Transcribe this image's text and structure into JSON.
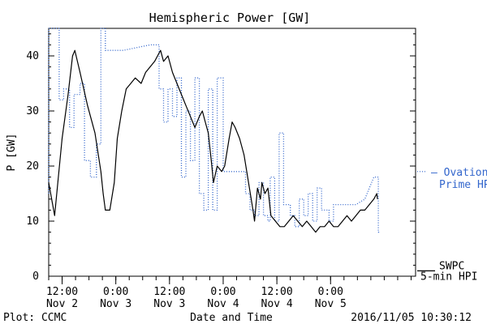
{
  "chart_data": {
    "type": "line",
    "title": "Hemispheric Power [GW]",
    "ylabel": "P [GW]",
    "xlabel": "Date and Time",
    "ylim": [
      0,
      45
    ],
    "yticks": [
      0,
      10,
      20,
      30,
      40
    ],
    "grid": false,
    "x_unit": "UTC",
    "xlim": [
      "2016-11-02T09:00",
      "2016-11-05T19:00"
    ],
    "xticks": [
      {
        "t": "2016-11-02T12:00",
        "line1": "12:00",
        "line2": "Nov 2"
      },
      {
        "t": "2016-11-03T00:00",
        "line1": "0:00",
        "line2": "Nov 3"
      },
      {
        "t": "2016-11-03T12:00",
        "line1": "12:00",
        "line2": "Nov 3"
      },
      {
        "t": "2016-11-04T00:00",
        "line1": "0:00",
        "line2": "Nov 4"
      },
      {
        "t": "2016-11-04T12:00",
        "line1": "12:00",
        "line2": "Nov 4"
      },
      {
        "t": "2016-11-05T00:00",
        "line1": "0:00",
        "line2": "Nov 5"
      }
    ],
    "minor_ticks_per_major": 4,
    "series": [
      {
        "name": "SWPC 5-min HPI",
        "color": "#000000",
        "style": "solid",
        "points": [
          [
            "2016-11-02T09:00",
            17
          ],
          [
            "2016-11-02T10:20",
            11
          ],
          [
            "2016-11-02T12:00",
            25
          ],
          [
            "2016-11-02T13:20",
            33
          ],
          [
            "2016-11-02T14:20",
            40
          ],
          [
            "2016-11-02T14:50",
            41
          ],
          [
            "2016-11-02T16:00",
            37
          ],
          [
            "2016-11-02T17:40",
            31
          ],
          [
            "2016-11-02T19:20",
            26
          ],
          [
            "2016-11-02T20:40",
            19
          ],
          [
            "2016-11-02T21:10",
            15
          ],
          [
            "2016-11-02T21:40",
            12
          ],
          [
            "2016-11-02T22:40",
            12
          ],
          [
            "2016-11-02T23:40",
            17
          ],
          [
            "2016-11-03T00:20",
            25
          ],
          [
            "2016-11-03T01:20",
            30
          ],
          [
            "2016-11-03T02:20",
            34
          ],
          [
            "2016-11-03T03:20",
            35
          ],
          [
            "2016-11-03T04:20",
            36
          ],
          [
            "2016-11-03T05:40",
            35
          ],
          [
            "2016-11-03T06:40",
            37
          ],
          [
            "2016-11-03T07:40",
            38
          ],
          [
            "2016-11-03T08:40",
            39
          ],
          [
            "2016-11-03T09:20",
            40
          ],
          [
            "2016-11-03T10:00",
            41
          ],
          [
            "2016-11-03T10:40",
            39
          ],
          [
            "2016-11-03T11:40",
            40
          ],
          [
            "2016-11-03T12:40",
            37
          ],
          [
            "2016-11-03T13:40",
            35
          ],
          [
            "2016-11-03T14:40",
            33
          ],
          [
            "2016-11-03T15:40",
            31
          ],
          [
            "2016-11-03T16:40",
            29
          ],
          [
            "2016-11-03T17:40",
            27
          ],
          [
            "2016-11-03T18:40",
            29
          ],
          [
            "2016-11-03T19:20",
            30
          ],
          [
            "2016-11-03T20:00",
            28
          ],
          [
            "2016-11-03T20:40",
            26
          ],
          [
            "2016-11-03T21:20",
            21
          ],
          [
            "2016-11-03T21:50",
            17
          ],
          [
            "2016-11-03T22:40",
            20
          ],
          [
            "2016-11-03T23:40",
            19
          ],
          [
            "2016-11-04T00:20",
            20
          ],
          [
            "2016-11-04T01:20",
            25
          ],
          [
            "2016-11-04T02:00",
            28
          ],
          [
            "2016-11-04T02:40",
            27
          ],
          [
            "2016-11-04T03:40",
            25
          ],
          [
            "2016-11-04T04:40",
            22
          ],
          [
            "2016-11-04T05:40",
            17
          ],
          [
            "2016-11-04T06:40",
            12
          ],
          [
            "2016-11-04T07:00",
            10
          ],
          [
            "2016-11-04T07:40",
            16
          ],
          [
            "2016-11-04T08:20",
            14
          ],
          [
            "2016-11-04T08:40",
            17
          ],
          [
            "2016-11-04T09:20",
            15
          ],
          [
            "2016-11-04T10:00",
            16
          ],
          [
            "2016-11-04T10:40",
            11
          ],
          [
            "2016-11-04T11:40",
            10
          ],
          [
            "2016-11-04T12:40",
            9
          ],
          [
            "2016-11-04T13:40",
            9
          ],
          [
            "2016-11-04T14:40",
            10
          ],
          [
            "2016-11-04T15:40",
            11
          ],
          [
            "2016-11-04T16:40",
            10
          ],
          [
            "2016-11-04T17:40",
            9
          ],
          [
            "2016-11-04T18:40",
            10
          ],
          [
            "2016-11-04T19:40",
            9
          ],
          [
            "2016-11-04T20:40",
            8
          ],
          [
            "2016-11-04T21:40",
            9
          ],
          [
            "2016-11-04T22:40",
            9
          ],
          [
            "2016-11-04T23:40",
            10
          ],
          [
            "2016-11-05T00:40",
            9
          ],
          [
            "2016-11-05T01:40",
            9
          ],
          [
            "2016-11-05T02:40",
            10
          ],
          [
            "2016-11-05T03:40",
            11
          ],
          [
            "2016-11-05T04:40",
            10
          ],
          [
            "2016-11-05T05:40",
            11
          ],
          [
            "2016-11-05T06:40",
            12
          ],
          [
            "2016-11-05T07:40",
            12
          ],
          [
            "2016-11-05T08:40",
            13
          ],
          [
            "2016-11-05T09:40",
            14
          ],
          [
            "2016-11-05T10:20",
            15
          ],
          [
            "2016-11-05T10:30",
            14
          ]
        ]
      },
      {
        "name": "Ovation Prime HPI",
        "color": "#3366cc",
        "style": "dotted",
        "points": [
          [
            "2016-11-02T09:00",
            15
          ],
          [
            "2016-11-02T09:00",
            45
          ],
          [
            "2016-11-02T11:20",
            45
          ],
          [
            "2016-11-02T11:20",
            32
          ],
          [
            "2016-11-02T12:20",
            32
          ],
          [
            "2016-11-02T12:20",
            34
          ],
          [
            "2016-11-02T13:40",
            34
          ],
          [
            "2016-11-02T13:40",
            27
          ],
          [
            "2016-11-02T14:40",
            27
          ],
          [
            "2016-11-02T14:40",
            33
          ],
          [
            "2016-11-02T16:00",
            33
          ],
          [
            "2016-11-02T16:00",
            35
          ],
          [
            "2016-11-02T17:00",
            35
          ],
          [
            "2016-11-02T17:00",
            21
          ],
          [
            "2016-11-02T18:20",
            21
          ],
          [
            "2016-11-02T18:20",
            18
          ],
          [
            "2016-11-02T19:40",
            18
          ],
          [
            "2016-11-02T19:40",
            24
          ],
          [
            "2016-11-02T20:40",
            24
          ],
          [
            "2016-11-02T20:40",
            45
          ],
          [
            "2016-11-02T21:40",
            45
          ],
          [
            "2016-11-02T21:40",
            41
          ],
          [
            "2016-11-03T00:40",
            41
          ],
          [
            "2016-11-03T01:40",
            41
          ],
          [
            "2016-11-03T04:40",
            41.5
          ],
          [
            "2016-11-03T07:40",
            42
          ],
          [
            "2016-11-03T09:40",
            42
          ],
          [
            "2016-11-03T09:40",
            34
          ],
          [
            "2016-11-03T10:40",
            34
          ],
          [
            "2016-11-03T10:40",
            28
          ],
          [
            "2016-11-03T11:40",
            28
          ],
          [
            "2016-11-03T11:40",
            34
          ],
          [
            "2016-11-03T12:40",
            34
          ],
          [
            "2016-11-03T12:40",
            29
          ],
          [
            "2016-11-03T13:40",
            29
          ],
          [
            "2016-11-03T13:40",
            36
          ],
          [
            "2016-11-03T14:40",
            36
          ],
          [
            "2016-11-03T14:40",
            18
          ],
          [
            "2016-11-03T15:40",
            18
          ],
          [
            "2016-11-03T15:40",
            30
          ],
          [
            "2016-11-03T16:40",
            30
          ],
          [
            "2016-11-03T16:40",
            21
          ],
          [
            "2016-11-03T17:40",
            21
          ],
          [
            "2016-11-03T17:40",
            36
          ],
          [
            "2016-11-03T18:40",
            36
          ],
          [
            "2016-11-03T18:40",
            15
          ],
          [
            "2016-11-03T19:40",
            15
          ],
          [
            "2016-11-03T19:40",
            12
          ],
          [
            "2016-11-03T20:40",
            12
          ],
          [
            "2016-11-03T20:40",
            34
          ],
          [
            "2016-11-03T21:40",
            34
          ],
          [
            "2016-11-03T21:40",
            12
          ],
          [
            "2016-11-03T22:40",
            12
          ],
          [
            "2016-11-03T22:40",
            36
          ],
          [
            "2016-11-04T00:00",
            36
          ],
          [
            "2016-11-04T00:00",
            19
          ],
          [
            "2016-11-04T05:00",
            19
          ],
          [
            "2016-11-04T05:00",
            15
          ],
          [
            "2016-11-04T06:00",
            15
          ],
          [
            "2016-11-04T06:00",
            12
          ],
          [
            "2016-11-04T07:00",
            12
          ],
          [
            "2016-11-04T07:00",
            11
          ],
          [
            "2016-11-04T08:00",
            11
          ],
          [
            "2016-11-04T08:00",
            17
          ],
          [
            "2016-11-04T09:00",
            17
          ],
          [
            "2016-11-04T09:00",
            11
          ],
          [
            "2016-11-04T10:00",
            11
          ],
          [
            "2016-11-04T10:00",
            10
          ],
          [
            "2016-11-04T10:30",
            10
          ],
          [
            "2016-11-04T10:30",
            18
          ],
          [
            "2016-11-04T11:30",
            18
          ],
          [
            "2016-11-04T11:30",
            10
          ],
          [
            "2016-11-04T12:30",
            10
          ],
          [
            "2016-11-04T12:30",
            26
          ],
          [
            "2016-11-04T13:30",
            26
          ],
          [
            "2016-11-04T13:30",
            13
          ],
          [
            "2016-11-04T15:00",
            13
          ],
          [
            "2016-11-04T15:00",
            11
          ],
          [
            "2016-11-04T16:00",
            11
          ],
          [
            "2016-11-04T16:00",
            9
          ],
          [
            "2016-11-04T17:00",
            9
          ],
          [
            "2016-11-04T17:00",
            14
          ],
          [
            "2016-11-04T18:00",
            14
          ],
          [
            "2016-11-04T18:00",
            11
          ],
          [
            "2016-11-04T19:00",
            11
          ],
          [
            "2016-11-04T19:00",
            15
          ],
          [
            "2016-11-04T20:00",
            15
          ],
          [
            "2016-11-04T20:00",
            10
          ],
          [
            "2016-11-04T21:00",
            10
          ],
          [
            "2016-11-04T21:00",
            16
          ],
          [
            "2016-11-04T22:00",
            16
          ],
          [
            "2016-11-04T22:00",
            12
          ],
          [
            "2016-11-04T23:40",
            12
          ],
          [
            "2016-11-04T23:40",
            10
          ],
          [
            "2016-11-05T00:40",
            10
          ],
          [
            "2016-11-05T00:40",
            13
          ],
          [
            "2016-11-05T03:40",
            13
          ],
          [
            "2016-11-05T05:40",
            13
          ],
          [
            "2016-11-05T07:40",
            14
          ],
          [
            "2016-11-05T09:40",
            18
          ],
          [
            "2016-11-05T10:40",
            18
          ],
          [
            "2016-11-05T10:40",
            8
          ],
          [
            "2016-11-05T11:00",
            8
          ]
        ]
      }
    ],
    "annotations": {
      "ovation_label_line1": "Ovation",
      "ovation_label_line2": "Prime HPI",
      "ovation_label_y": 19,
      "swpc_label_line1": "SWPC",
      "swpc_label_line2": "5-min HPI",
      "swpc_label_y": 2
    }
  },
  "footer": {
    "plot_credit": "Plot: CCMC",
    "timestamp": "2016/11/05 10:30:12"
  },
  "colors": {
    "observed": "#000000",
    "model": "#3366cc",
    "background": "#ffffff"
  }
}
